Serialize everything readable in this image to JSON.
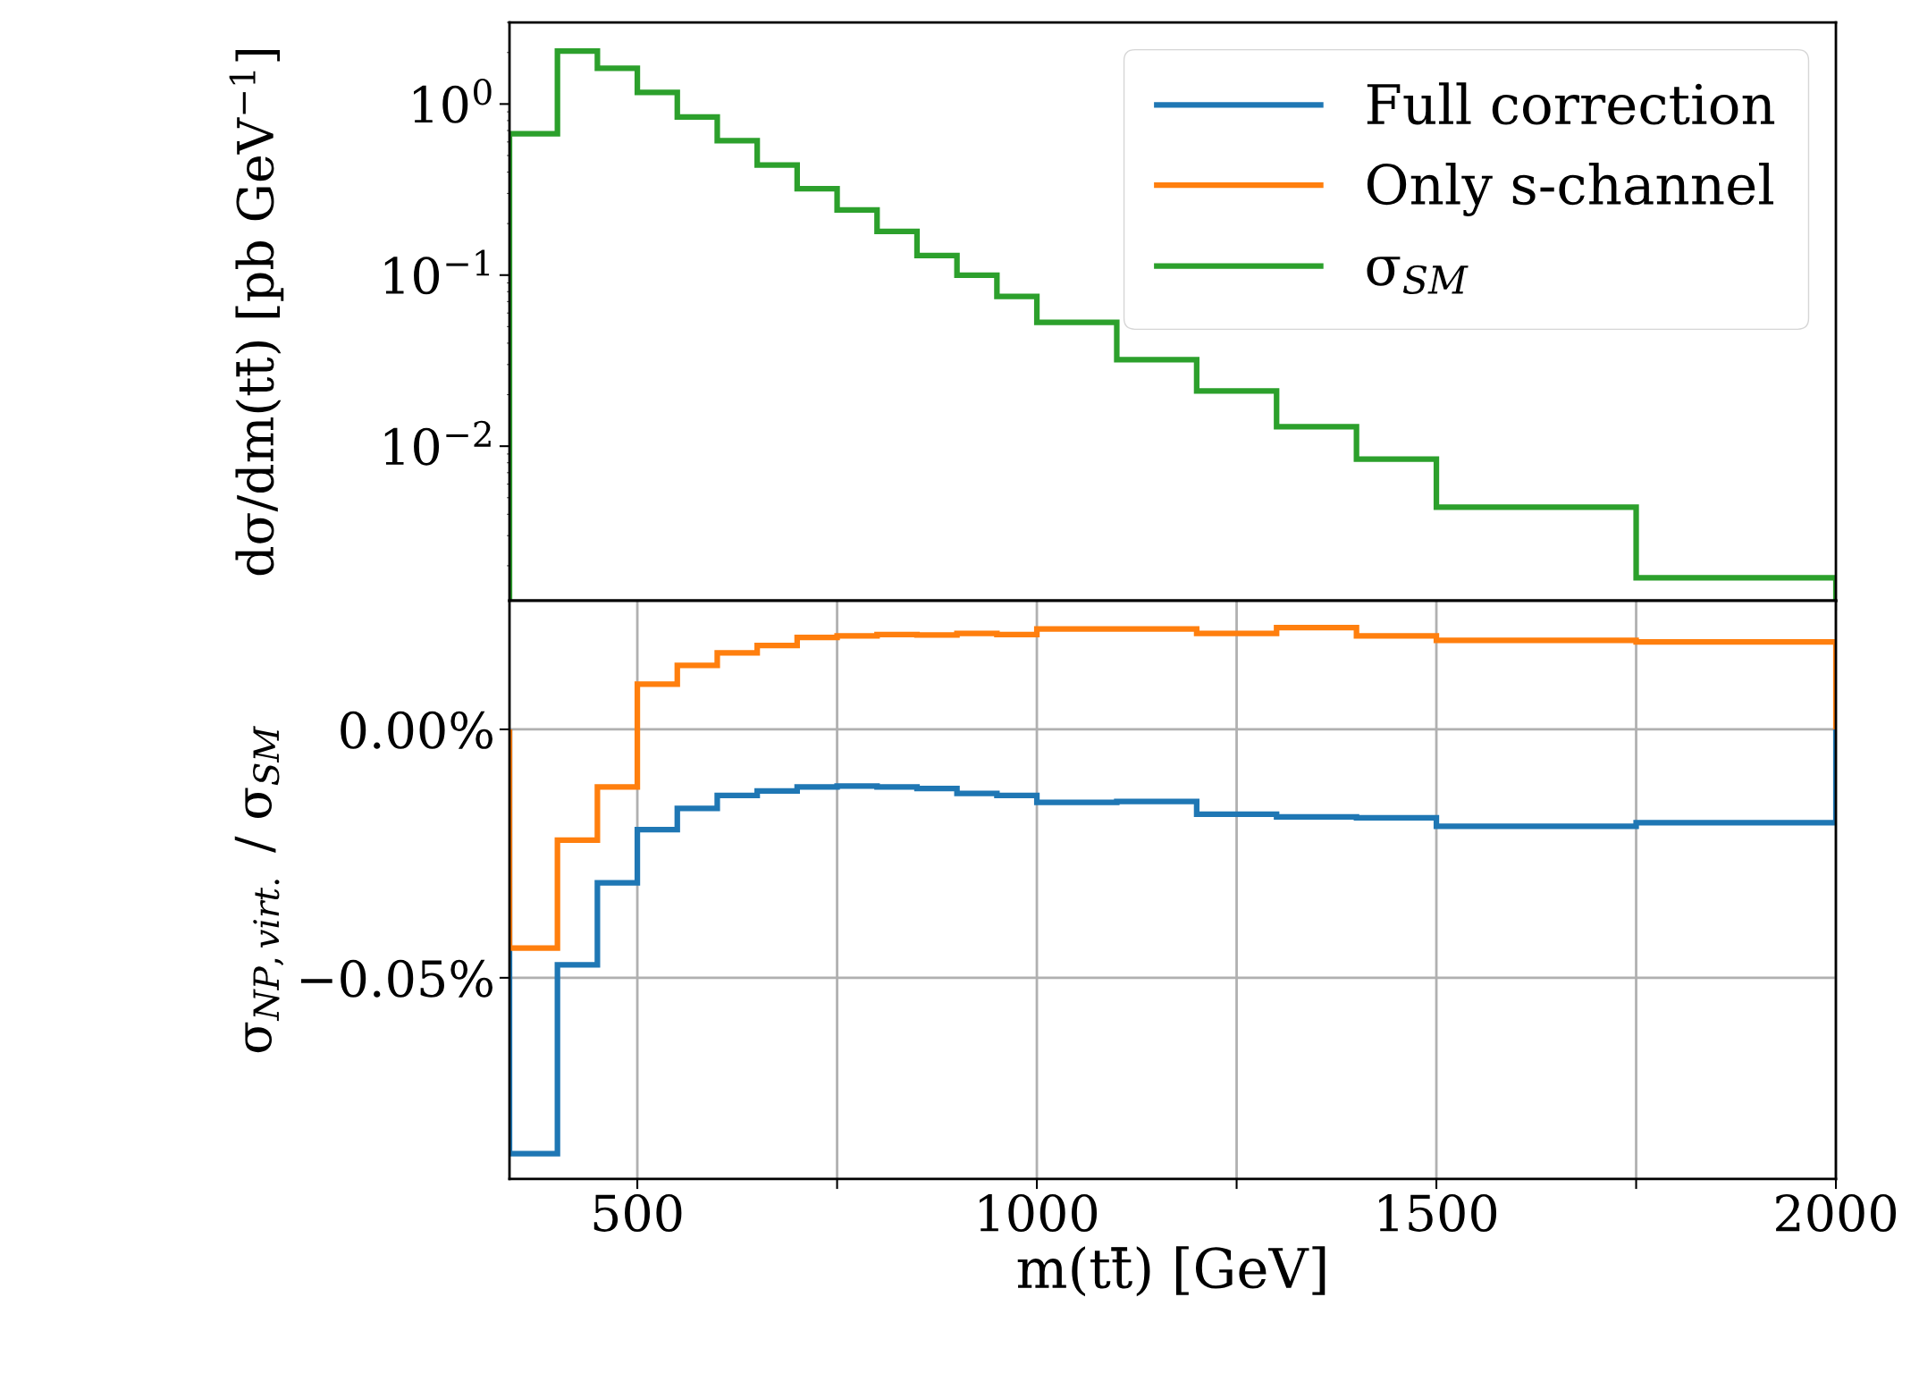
{
  "chart_data": [
    {
      "type": "histogram",
      "ylabel": "dσ/dm(tt̄) [pb GeV$^{−1}$]",
      "log": "y",
      "legend": "top right",
      "tick_labels": "y",
      "grid": false,
      "bins": [
        340,
        400,
        450,
        500,
        550,
        600,
        650,
        700,
        750,
        800,
        850,
        900,
        950,
        1000,
        1100,
        1200,
        1300,
        1400,
        1500,
        1750,
        2000
      ],
      "xlim": [
        340,
        2000
      ],
      "xticks": [
        {
          "value": 500,
          "label": null
        },
        {
          "value": 750,
          "label": null
        },
        {
          "value": 1000,
          "label": null
        },
        {
          "value": 1250,
          "label": null
        },
        {
          "value": 1500,
          "label": null
        },
        {
          "value": 1750,
          "label": null
        },
        {
          "value": 2000,
          "label": null
        }
      ],
      "ylim": [
        0.00125,
        3
      ],
      "yticks": [
        {
          "value": 1,
          "label": "10$^{0}$"
        },
        {
          "value": 0.1,
          "label": "10$^{−1}$"
        },
        {
          "value": 0.01,
          "label": "10$^{−2}$"
        }
      ],
      "series": [
        {
          "name": "σ$_{SM}$",
          "color": "#2ca02c",
          "values": [
            0.67,
            2.04,
            1.62,
            1.17,
            0.84,
            0.61,
            0.44,
            0.32,
            0.24,
            0.18,
            0.13,
            0.1,
            0.075,
            0.053,
            0.032,
            0.021,
            0.013,
            0.0084,
            0.0044,
            0.0017
          ]
        }
      ]
    },
    {
      "type": "histogram",
      "xlabel": "m(tt̄) [GeV]",
      "ylabel": "σ$_{NP,virt.}$ / σ$_{SM}$",
      "legend": "top right",
      "grid": true,
      "bins": [
        340,
        400,
        450,
        500,
        550,
        600,
        650,
        700,
        750,
        800,
        850,
        900,
        950,
        1000,
        1100,
        1200,
        1300,
        1400,
        1500,
        1750,
        2000
      ],
      "xlim": [
        340,
        2000
      ],
      "xticks": [
        500,
        {
          "value": 750,
          "label": null
        },
        1000,
        {
          "value": 1250,
          "label": null
        },
        1500,
        {
          "value": 1750,
          "label": null
        },
        2000
      ],
      "ylim": [
        -0.0905,
        0.0259
      ],
      "yticks": [
        {
          "value": 0,
          "label": "0.00%"
        },
        {
          "value": -0.05,
          "label": "−0.05%"
        }
      ],
      "series": [
        {
          "name": "Full correction",
          "color": "#1f77b4",
          "values": [
            -0.0854,
            -0.0474,
            -0.0309,
            -0.0202,
            -0.0159,
            -0.0133,
            -0.0124,
            -0.0116,
            -0.0114,
            -0.0116,
            -0.0119,
            -0.0129,
            -0.0133,
            -0.0147,
            -0.0145,
            -0.0171,
            -0.0176,
            -0.0178,
            -0.0195,
            -0.0188
          ]
        },
        {
          "name": "Only s-channel",
          "color": "#ff7f0e",
          "values": [
            -0.044,
            -0.0223,
            -0.0116,
            0.0091,
            0.0129,
            0.0154,
            0.0169,
            0.0185,
            0.0188,
            0.0191,
            0.019,
            0.0193,
            0.0191,
            0.0202,
            0.0202,
            0.0193,
            0.0205,
            0.0188,
            0.0179,
            0.0176
          ]
        }
      ]
    }
  ]
}
